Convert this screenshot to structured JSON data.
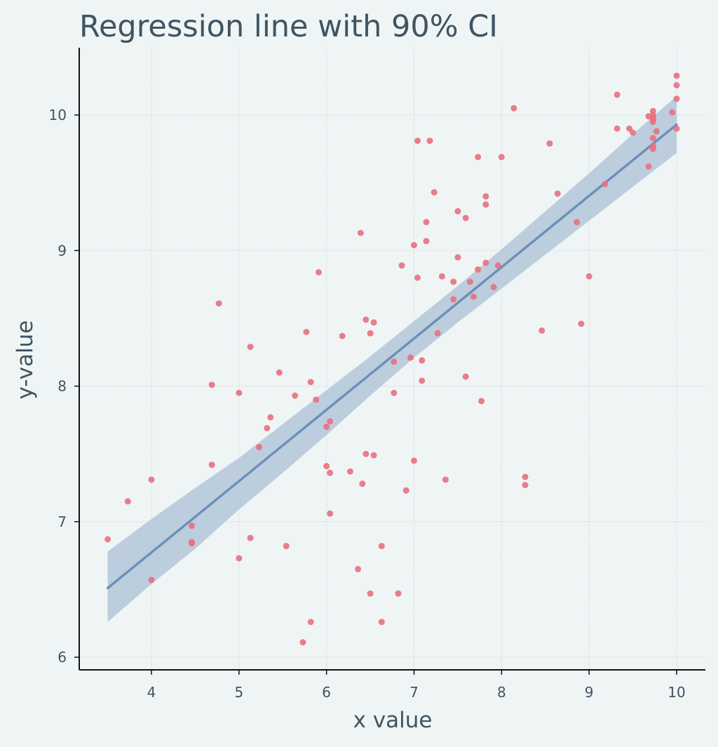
{
  "chart_data": {
    "type": "scatter",
    "title": "Regression line with 90% CI",
    "xlabel": "x value",
    "ylabel": "y-value",
    "xlim": [
      3.2,
      10.35
    ],
    "ylim": [
      5.9,
      10.5
    ],
    "xticks": [
      4,
      5,
      6,
      7,
      8,
      9,
      10
    ],
    "yticks": [
      6,
      7,
      8,
      9,
      10
    ],
    "grid": true,
    "colors": {
      "background": "#eff5f5",
      "text": "#3f5562",
      "points": "#e8707f",
      "regression_line": "#6a90b8",
      "ci_band": "#b8cadc",
      "grid": "#c3cbcd",
      "axis": "#111111"
    },
    "regression": {
      "x": [
        3.5,
        10.0
      ],
      "y": [
        6.51,
        9.93
      ]
    },
    "ci_band": {
      "x": [
        3.5,
        4.0,
        4.5,
        5.0,
        5.5,
        6.0,
        6.5,
        7.0,
        7.5,
        8.0,
        8.5,
        9.0,
        9.5,
        10.0
      ],
      "upper": [
        6.78,
        7.02,
        7.25,
        7.47,
        7.72,
        7.97,
        8.22,
        8.48,
        8.74,
        9.01,
        9.29,
        9.57,
        9.86,
        10.14
      ],
      "lower": [
        6.26,
        6.54,
        6.8,
        7.09,
        7.36,
        7.64,
        7.93,
        8.21,
        8.47,
        8.72,
        8.97,
        9.22,
        9.47,
        9.72
      ]
    },
    "series": [
      {
        "points": [
          [
            3.5,
            6.87
          ],
          [
            3.73,
            7.15
          ],
          [
            4.0,
            7.31
          ],
          [
            4.0,
            6.57
          ],
          [
            4.46,
            6.97
          ],
          [
            4.46,
            6.85
          ],
          [
            4.46,
            6.84
          ],
          [
            4.69,
            8.01
          ],
          [
            4.69,
            7.42
          ],
          [
            4.77,
            8.61
          ],
          [
            5.0,
            7.95
          ],
          [
            5.0,
            6.73
          ],
          [
            5.13,
            8.29
          ],
          [
            5.13,
            6.88
          ],
          [
            5.23,
            7.55
          ],
          [
            5.32,
            7.69
          ],
          [
            5.36,
            7.77
          ],
          [
            5.46,
            8.1
          ],
          [
            5.54,
            6.82
          ],
          [
            5.64,
            7.93
          ],
          [
            5.73,
            6.11
          ],
          [
            5.77,
            8.4
          ],
          [
            5.82,
            8.03
          ],
          [
            5.82,
            6.26
          ],
          [
            5.88,
            7.9
          ],
          [
            5.91,
            8.84
          ],
          [
            6.0,
            7.7
          ],
          [
            6.0,
            7.41
          ],
          [
            6.04,
            7.74
          ],
          [
            6.04,
            7.36
          ],
          [
            6.04,
            7.06
          ],
          [
            6.18,
            8.37
          ],
          [
            6.27,
            7.37
          ],
          [
            6.36,
            6.65
          ],
          [
            6.39,
            9.13
          ],
          [
            6.41,
            7.28
          ],
          [
            6.45,
            8.49
          ],
          [
            6.45,
            7.5
          ],
          [
            6.5,
            8.39
          ],
          [
            6.5,
            6.47
          ],
          [
            6.54,
            8.47
          ],
          [
            6.54,
            7.49
          ],
          [
            6.63,
            6.82
          ],
          [
            6.63,
            6.26
          ],
          [
            6.77,
            8.18
          ],
          [
            6.77,
            7.95
          ],
          [
            6.82,
            6.47
          ],
          [
            6.86,
            8.89
          ],
          [
            6.91,
            7.23
          ],
          [
            6.96,
            8.21
          ],
          [
            7.0,
            9.04
          ],
          [
            7.0,
            7.45
          ],
          [
            7.04,
            9.81
          ],
          [
            7.04,
            8.8
          ],
          [
            7.09,
            8.19
          ],
          [
            7.09,
            8.04
          ],
          [
            7.14,
            9.21
          ],
          [
            7.14,
            9.07
          ],
          [
            7.18,
            9.81
          ],
          [
            7.23,
            9.43
          ],
          [
            7.27,
            8.39
          ],
          [
            7.32,
            8.81
          ],
          [
            7.36,
            7.31
          ],
          [
            7.45,
            8.77
          ],
          [
            7.45,
            8.64
          ],
          [
            7.5,
            9.29
          ],
          [
            7.5,
            8.95
          ],
          [
            7.59,
            9.24
          ],
          [
            7.59,
            8.07
          ],
          [
            7.64,
            8.77
          ],
          [
            7.68,
            8.66
          ],
          [
            7.73,
            9.69
          ],
          [
            7.73,
            8.86
          ],
          [
            7.77,
            7.89
          ],
          [
            7.82,
            9.4
          ],
          [
            7.82,
            9.34
          ],
          [
            7.82,
            8.91
          ],
          [
            7.91,
            8.73
          ],
          [
            7.96,
            8.89
          ],
          [
            8.0,
            9.69
          ],
          [
            8.14,
            10.05
          ],
          [
            8.27,
            7.33
          ],
          [
            8.27,
            7.27
          ],
          [
            8.46,
            8.41
          ],
          [
            8.55,
            9.79
          ],
          [
            8.64,
            9.42
          ],
          [
            8.86,
            9.21
          ],
          [
            8.91,
            8.46
          ],
          [
            9.0,
            8.81
          ],
          [
            9.18,
            9.49
          ],
          [
            9.32,
            10.15
          ],
          [
            9.32,
            9.9
          ],
          [
            9.46,
            9.9
          ],
          [
            9.5,
            9.87
          ],
          [
            9.68,
            9.99
          ],
          [
            9.68,
            9.62
          ],
          [
            9.73,
            10.03
          ],
          [
            9.73,
            10.0
          ],
          [
            9.73,
            9.98
          ],
          [
            9.73,
            9.97
          ],
          [
            9.73,
            9.95
          ],
          [
            9.73,
            9.83
          ],
          [
            9.73,
            9.77
          ],
          [
            9.73,
            9.75
          ],
          [
            9.77,
            9.88
          ],
          [
            9.95,
            10.02
          ],
          [
            10.0,
            10.29
          ],
          [
            10.0,
            10.22
          ],
          [
            10.0,
            10.12
          ],
          [
            10.0,
            9.9
          ]
        ]
      }
    ]
  }
}
